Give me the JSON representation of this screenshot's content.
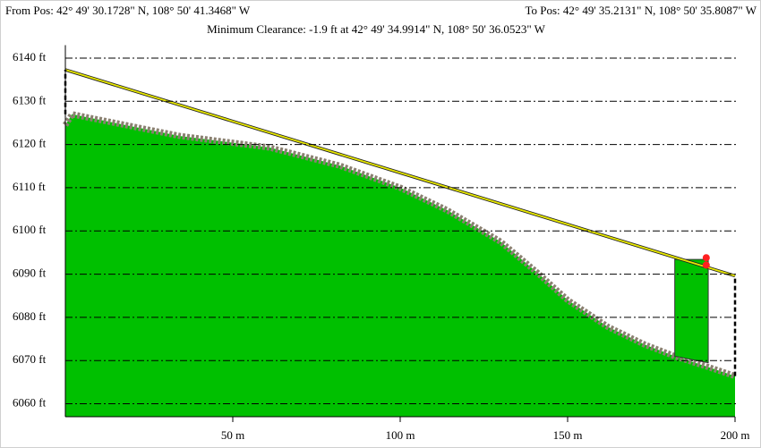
{
  "chart_data": {
    "type": "profile",
    "from_pos": "From Pos: 42° 49' 30.1728\" N, 108° 50' 41.3468\" W",
    "to_pos": "To Pos: 42° 49' 35.2131\" N, 108° 50' 35.8087\" W",
    "subtitle": "Minimum Clearance: -1.9 ft at 42° 49' 34.9914\" N, 108° 50' 36.0523\" W",
    "xlim": [
      0,
      200
    ],
    "xticks": [
      {
        "value": 50,
        "label": "50 m"
      },
      {
        "value": 100,
        "label": "100 m"
      },
      {
        "value": 150,
        "label": "150 m"
      },
      {
        "value": 200,
        "label": "200 m"
      }
    ],
    "ylim": [
      6057,
      6143
    ],
    "yticks": [
      {
        "value": 6060,
        "label": "6060 ft"
      },
      {
        "value": 6070,
        "label": "6070 ft"
      },
      {
        "value": 6080,
        "label": "6080 ft"
      },
      {
        "value": 6090,
        "label": "6090 ft"
      },
      {
        "value": 6100,
        "label": "6100 ft"
      },
      {
        "value": 6110,
        "label": "6110 ft"
      },
      {
        "value": 6120,
        "label": "6120 ft"
      },
      {
        "value": 6130,
        "label": "6130 ft"
      },
      {
        "value": 6140,
        "label": "6140 ft"
      }
    ],
    "grid": true,
    "series": [
      {
        "style": "area",
        "color": "#00c000",
        "surface_color": "#8a8070",
        "x": [
          0,
          2,
          34,
          61,
          82,
          100,
          114,
          130,
          141,
          150,
          162,
          173,
          182,
          192,
          200
        ],
        "values": [
          6124.5,
          6127,
          6122,
          6119.3,
          6115.1,
          6110,
          6104.8,
          6097.5,
          6090.3,
          6084,
          6077.8,
          6073.7,
          6071,
          6068.5,
          6066.4
        ]
      },
      {
        "style": "polygon",
        "color": "#00c000",
        "x": [
          182,
          182,
          192,
          192
        ],
        "values": [
          6071,
          6093.4,
          6093.4,
          6069.5
        ]
      },
      {
        "style": "line",
        "color": "#e8e800",
        "x": [
          0,
          200
        ],
        "values": [
          6137.3,
          6089.6
        ]
      },
      {
        "style": "dashed",
        "color": "#000000",
        "x": [
          0,
          0,
          null,
          200,
          200
        ],
        "values": [
          6127,
          6137.3,
          null,
          6066.4,
          6089.6
        ]
      },
      {
        "style": "points",
        "color": "#ff2020",
        "x": [
          191.4,
          191.4
        ],
        "values": [
          6093.8,
          6092.1
        ]
      }
    ]
  }
}
